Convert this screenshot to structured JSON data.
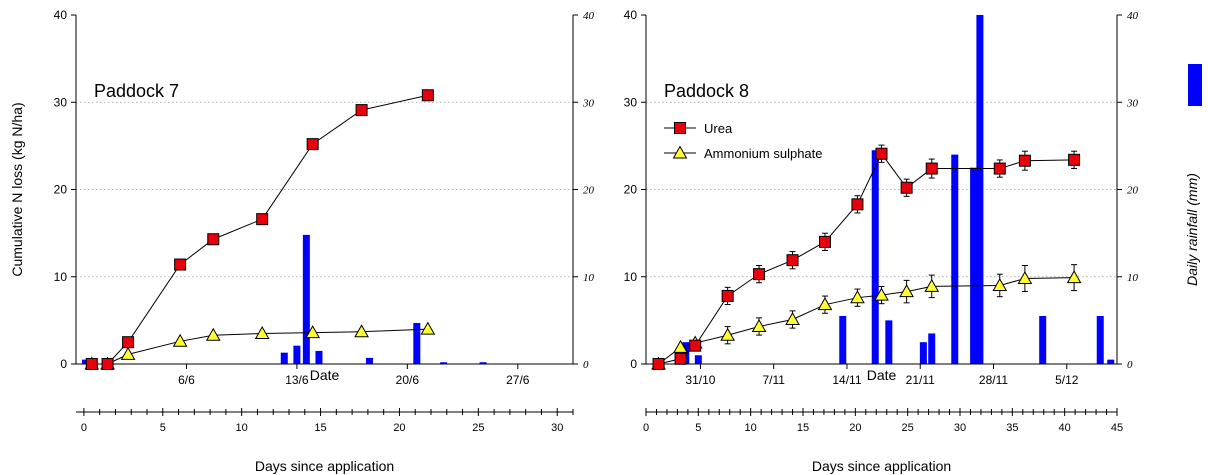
{
  "chart_data": [
    {
      "type": "line+bar",
      "annotation": "Paddock 7",
      "ylabel": "Cumulative N loss (kg N/ha)",
      "xlabel": "Date",
      "secondary_xlabel": "Days since application",
      "ylim": [
        0,
        40
      ],
      "yticks": [
        "0",
        "10",
        "20",
        "30",
        "40"
      ],
      "y2lim": [
        0,
        40
      ],
      "y2ticks": [
        "0",
        "10",
        "20",
        "30",
        "40"
      ],
      "xlim": [
        -0.5,
        31
      ],
      "date_ticks": [
        {
          "label": "6/6",
          "day": 6.5
        },
        {
          "label": "13/6",
          "day": 13.5
        },
        {
          "label": "20/6",
          "day": 20.5
        },
        {
          "label": "27/6",
          "day": 27.5
        }
      ],
      "day_ticks": [
        0,
        5,
        10,
        15,
        20,
        25,
        30
      ],
      "day_tick_labels": [
        "0",
        "5",
        "10",
        "15",
        "20",
        "25",
        "30"
      ],
      "gridlines": "horizontal dotted",
      "series": [
        {
          "marker": "square",
          "color": "#e8000b",
          "x": [
            0.5,
            1.5,
            2.8,
            6.1,
            8.2,
            11.3,
            14.5,
            17.6,
            21.8
          ],
          "y": [
            0,
            0,
            2.5,
            11.4,
            14.3,
            16.6,
            25.2,
            29.1,
            30.8
          ]
        },
        {
          "marker": "triangle",
          "color": "#ffff33",
          "x": [
            0.5,
            1.5,
            2.8,
            6.1,
            8.2,
            11.3,
            14.5,
            17.6,
            21.8
          ],
          "y": [
            0,
            0,
            1.1,
            2.6,
            3.3,
            3.5,
            3.6,
            3.7,
            4.0
          ]
        }
      ],
      "rainfall": {
        "color": "#0000ff",
        "x": [
          0.1,
          12.7,
          13.5,
          14.1,
          14.9,
          18.1,
          21.1,
          22.8,
          25.3
        ],
        "y": [
          0.5,
          1.3,
          2.1,
          14.8,
          1.5,
          0.7,
          4.7,
          0.2,
          0.2
        ]
      }
    },
    {
      "type": "line+bar",
      "annotation": "Paddock 8",
      "ylabel": "",
      "xlabel": "Date",
      "secondary_xlabel": "Days since application",
      "y2label": "Daily rainfall (mm)",
      "ylim": [
        0,
        40
      ],
      "yticks": [
        "0",
        "10",
        "20",
        "30",
        "40"
      ],
      "y2lim": [
        0,
        40
      ],
      "y2ticks": [
        "0",
        "10",
        "20",
        "30",
        "40"
      ],
      "xlim": [
        0,
        45
      ],
      "date_ticks": [
        {
          "label": "31/10",
          "day": 5.2
        },
        {
          "label": "7/11",
          "day": 12.2
        },
        {
          "label": "14/11",
          "day": 19.2
        },
        {
          "label": "21/11",
          "day": 26.2
        },
        {
          "label": "28/11",
          "day": 33.2
        },
        {
          "label": "5/12",
          "day": 40.2
        }
      ],
      "day_ticks": [
        0,
        5,
        10,
        15,
        20,
        25,
        30,
        35,
        40,
        45
      ],
      "day_tick_labels": [
        "0",
        "5",
        "10",
        "15",
        "20",
        "25",
        "30",
        "35",
        "40",
        "45"
      ],
      "gridlines": "horizontal dotted",
      "legend": {
        "position": "upper-left",
        "entries": [
          "Urea",
          "Ammonium sulphate"
        ]
      },
      "series": [
        {
          "name": "Urea",
          "marker": "square",
          "color": "#e8000b",
          "x": [
            1.2,
            3.3,
            4.7,
            7.8,
            10.8,
            14.0,
            17.1,
            20.2,
            22.5,
            24.9,
            27.3,
            33.8,
            36.2,
            40.9
          ],
          "y": [
            0,
            0.6,
            2.1,
            7.8,
            10.3,
            11.9,
            14.0,
            18.3,
            24.1,
            20.2,
            22.4,
            22.4,
            23.3,
            23.4
          ],
          "error": [
            0,
            0,
            0,
            0.3,
            0.3,
            0.3,
            0.3,
            0.3,
            0.3,
            0.3,
            0.4,
            0.3,
            0.4,
            0.3
          ]
        },
        {
          "name": "Ammonium sulphate",
          "marker": "triangle",
          "color": "#ffff33",
          "x": [
            1.2,
            3.3,
            4.7,
            7.8,
            10.8,
            14.0,
            17.1,
            20.2,
            22.5,
            24.9,
            27.3,
            33.8,
            36.2,
            40.9
          ],
          "y": [
            0,
            1.9,
            2.4,
            3.3,
            4.3,
            5.1,
            6.8,
            7.6,
            7.9,
            8.3,
            8.9,
            9.0,
            9.8,
            9.9
          ],
          "error": [
            0,
            0,
            0,
            0.3,
            0.3,
            0.3,
            0.3,
            0.3,
            0.3,
            0.6,
            0.6,
            0.6,
            0.8,
            0.8
          ]
        }
      ],
      "rainfall": {
        "color": "#0000ff",
        "x": [
          3.8,
          5.0,
          18.8,
          21.9,
          23.2,
          26.5,
          27.3,
          29.5,
          31.3,
          31.9,
          37.9,
          43.4,
          44.4
        ],
        "y": [
          2.5,
          1.0,
          5.5,
          24.5,
          5.0,
          2.5,
          3.5,
          24.0,
          22.5,
          40.0,
          5.5,
          5.5,
          0.5
        ]
      }
    }
  ]
}
